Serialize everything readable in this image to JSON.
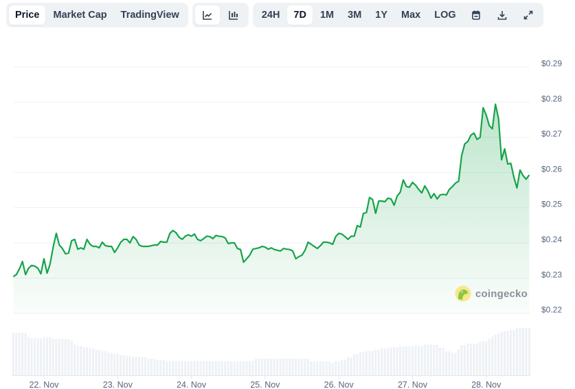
{
  "toolbar": {
    "view_tabs": [
      {
        "label": "Price",
        "active": true
      },
      {
        "label": "Market Cap",
        "active": false
      },
      {
        "label": "TradingView",
        "active": false
      }
    ],
    "chart_type_buttons": [
      {
        "icon": "line-chart-icon",
        "active": true
      },
      {
        "icon": "candlestick-chart-icon",
        "active": false
      }
    ],
    "ranges": [
      {
        "label": "24H",
        "active": false
      },
      {
        "label": "7D",
        "active": true
      },
      {
        "label": "1M",
        "active": false
      },
      {
        "label": "3M",
        "active": false
      },
      {
        "label": "1Y",
        "active": false
      },
      {
        "label": "Max",
        "active": false
      },
      {
        "label": "LOG",
        "active": false
      }
    ],
    "tool_icons": [
      "calendar-icon",
      "download-icon",
      "expand-icon"
    ]
  },
  "watermark": {
    "text": "coingecko"
  },
  "colors": {
    "line": "#16a34a",
    "fill": "#16a34a",
    "volume": "#eef1f5",
    "grid": "#eceff3",
    "text": "#58667e"
  },
  "chart_data": {
    "type": "area",
    "grid": true,
    "yaxis_position": "right",
    "ylim": [
      0.22,
      0.29
    ],
    "yticks": [
      "$0.29",
      "$0.28",
      "$0.27",
      "$0.26",
      "$0.25",
      "$0.24",
      "$0.23",
      "$0.22"
    ],
    "ytick_values": [
      0.29,
      0.28,
      0.27,
      0.26,
      0.25,
      0.24,
      0.23,
      0.22
    ],
    "xticks": [
      "22. Nov",
      "23. Nov",
      "24. Nov",
      "25. Nov",
      "26. Nov",
      "27. Nov",
      "28. Nov"
    ],
    "price_start": "21 Nov 14:00",
    "price_interval_hours": 1,
    "price": [
      0.2304,
      0.231,
      0.2326,
      0.2347,
      0.231,
      0.2328,
      0.2336,
      0.2334,
      0.2328,
      0.2312,
      0.2355,
      0.2314,
      0.234,
      0.2388,
      0.2427,
      0.2394,
      0.2384,
      0.2369,
      0.2371,
      0.2406,
      0.241,
      0.2382,
      0.2386,
      0.2382,
      0.241,
      0.2396,
      0.239,
      0.239,
      0.2386,
      0.2402,
      0.2392,
      0.239,
      0.239,
      0.2373,
      0.2386,
      0.2402,
      0.241,
      0.241,
      0.24,
      0.2418,
      0.241,
      0.2394,
      0.239,
      0.239,
      0.239,
      0.2392,
      0.2394,
      0.2394,
      0.2404,
      0.2402,
      0.2402,
      0.2427,
      0.2435,
      0.2429,
      0.2416,
      0.241,
      0.2419,
      0.2423,
      0.2419,
      0.2425,
      0.241,
      0.2406,
      0.2412,
      0.2419,
      0.2418,
      0.2412,
      0.2421,
      0.2419,
      0.2418,
      0.2414,
      0.2398,
      0.24,
      0.24,
      0.2384,
      0.2381,
      0.2345,
      0.2355,
      0.2365,
      0.2382,
      0.2384,
      0.2386,
      0.239,
      0.2388,
      0.2382,
      0.2386,
      0.2381,
      0.2379,
      0.2377,
      0.2384,
      0.2382,
      0.2381,
      0.2377,
      0.2355,
      0.2361,
      0.2365,
      0.2379,
      0.2402,
      0.2396,
      0.239,
      0.2384,
      0.2392,
      0.2402,
      0.2402,
      0.24,
      0.2396,
      0.2418,
      0.2427,
      0.2425,
      0.2418,
      0.241,
      0.2419,
      0.2419,
      0.2449,
      0.2445,
      0.2484,
      0.2486,
      0.2529,
      0.2523,
      0.2484,
      0.2519,
      0.2519,
      0.2517,
      0.2527,
      0.2525,
      0.2507,
      0.2533,
      0.2544,
      0.2579,
      0.256,
      0.2558,
      0.2572,
      0.2564,
      0.2552,
      0.2542,
      0.2562,
      0.2548,
      0.2527,
      0.254,
      0.2525,
      0.2536,
      0.2538,
      0.2536,
      0.2552,
      0.256,
      0.257,
      0.2575,
      0.2648,
      0.2681,
      0.2688,
      0.2706,
      0.2712,
      0.2694,
      0.27,
      0.2784,
      0.2763,
      0.2733,
      0.2724,
      0.2794,
      0.2753,
      0.2636,
      0.2667,
      0.2624,
      0.2626,
      0.2587,
      0.2556,
      0.2607,
      0.2591,
      0.2581,
      0.2593
    ],
    "volume_relative": [
      0.9,
      0.9,
      0.9,
      0.9,
      0.9,
      0.81,
      0.78,
      0.78,
      0.78,
      0.78,
      0.8,
      0.8,
      0.8,
      0.77,
      0.77,
      0.77,
      0.77,
      0.77,
      0.77,
      0.74,
      0.65,
      0.62,
      0.62,
      0.59,
      0.59,
      0.57,
      0.57,
      0.54,
      0.54,
      0.51,
      0.51,
      0.48,
      0.48,
      0.46,
      0.46,
      0.43,
      0.43,
      0.41,
      0.41,
      0.39,
      0.39,
      0.39,
      0.38,
      0.38,
      0.35,
      0.35,
      0.35,
      0.32,
      0.32,
      0.32,
      0.3,
      0.3,
      0.3,
      0.3,
      0.3,
      0.3,
      0.3,
      0.3,
      0.3,
      0.3,
      0.3,
      0.3,
      0.3,
      0.3,
      0.3,
      0.3,
      0.3,
      0.3,
      0.3,
      0.3,
      0.3,
      0.29,
      0.29,
      0.29,
      0.29,
      0.3,
      0.3,
      0.3,
      0.3,
      0.35,
      0.35,
      0.35,
      0.35,
      0.35,
      0.35,
      0.35,
      0.35,
      0.35,
      0.35,
      0.35,
      0.35,
      0.35,
      0.35,
      0.35,
      0.35,
      0.35,
      0.35,
      0.29,
      0.29,
      0.29,
      0.29,
      0.29,
      0.29,
      0.29,
      0.26,
      0.29,
      0.29,
      0.33,
      0.33,
      0.38,
      0.38,
      0.45,
      0.45,
      0.49,
      0.49,
      0.51,
      0.51,
      0.51,
      0.54,
      0.54,
      0.57,
      0.57,
      0.57,
      0.59,
      0.59,
      0.59,
      0.61,
      0.61,
      0.61,
      0.61,
      0.62,
      0.62,
      0.62,
      0.62,
      0.65,
      0.65,
      0.65,
      0.64,
      0.64,
      0.58,
      0.58,
      0.51,
      0.51,
      0.48,
      0.48,
      0.55,
      0.64,
      0.64,
      0.67,
      0.67,
      0.67,
      0.67,
      0.7,
      0.72,
      0.72,
      0.77,
      0.81,
      0.86,
      0.88,
      0.91,
      0.94,
      0.94,
      0.96,
      0.96,
      1.0,
      1.0,
      1.0,
      1.0,
      1.0
    ]
  }
}
